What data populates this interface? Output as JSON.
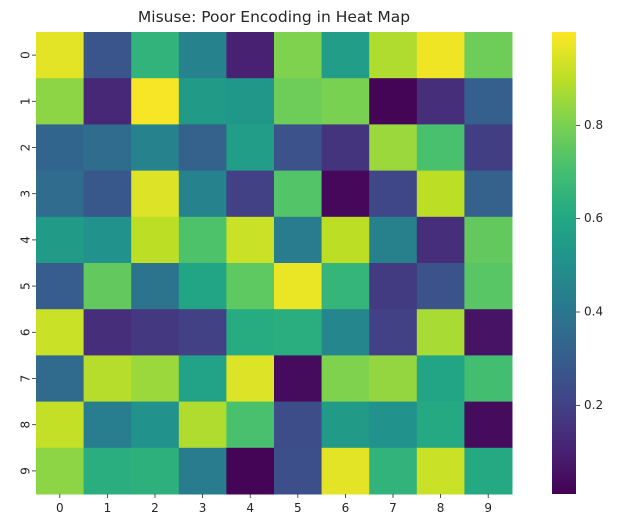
{
  "chart_data": {
    "type": "heatmap",
    "title": "Misuse: Poor Encoding in Heat Map",
    "xlabel": "",
    "ylabel": "",
    "colormap": "viridis",
    "x_categories": [
      "0",
      "1",
      "2",
      "3",
      "4",
      "5",
      "6",
      "7",
      "8",
      "9"
    ],
    "y_categories": [
      "0",
      "1",
      "2",
      "3",
      "4",
      "5",
      "6",
      "7",
      "8",
      "9"
    ],
    "values": [
      [
        0.96,
        0.27,
        0.65,
        0.45,
        0.1,
        0.81,
        0.56,
        0.88,
        0.98,
        0.78
      ],
      [
        0.83,
        0.12,
        0.99,
        0.55,
        0.53,
        0.78,
        0.8,
        0.02,
        0.14,
        0.31
      ],
      [
        0.33,
        0.36,
        0.45,
        0.32,
        0.56,
        0.26,
        0.16,
        0.85,
        0.71,
        0.19
      ],
      [
        0.36,
        0.28,
        0.95,
        0.45,
        0.2,
        0.73,
        0.03,
        0.22,
        0.9,
        0.32
      ],
      [
        0.55,
        0.51,
        0.9,
        0.72,
        0.92,
        0.42,
        0.9,
        0.44,
        0.14,
        0.76
      ],
      [
        0.3,
        0.76,
        0.39,
        0.59,
        0.75,
        0.97,
        0.66,
        0.18,
        0.26,
        0.74
      ],
      [
        0.92,
        0.14,
        0.17,
        0.2,
        0.62,
        0.63,
        0.46,
        0.2,
        0.87,
        0.06
      ],
      [
        0.35,
        0.89,
        0.85,
        0.58,
        0.95,
        0.04,
        0.81,
        0.84,
        0.59,
        0.7
      ],
      [
        0.91,
        0.43,
        0.51,
        0.88,
        0.71,
        0.24,
        0.55,
        0.51,
        0.61,
        0.04
      ],
      [
        0.83,
        0.63,
        0.64,
        0.42,
        0.02,
        0.25,
        0.96,
        0.65,
        0.92,
        0.61
      ]
    ],
    "colorbar": {
      "range": [
        0.01,
        1.0
      ],
      "ticks": [
        0.2,
        0.4,
        0.6,
        0.8
      ],
      "tick_labels": [
        "0.2",
        "0.4",
        "0.6",
        "0.8"
      ]
    },
    "grid": false,
    "legend": "colorbar-right"
  }
}
